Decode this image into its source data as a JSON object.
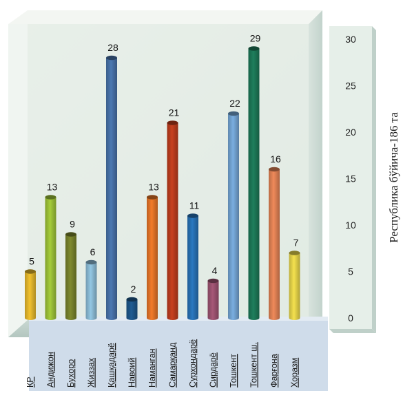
{
  "chart_data": {
    "type": "bar",
    "title": "",
    "xlabel": "",
    "ylabel": "Республика бўйича-186 та",
    "ylim": [
      0,
      30
    ],
    "yticks": [
      0,
      5,
      10,
      15,
      20,
      25,
      30
    ],
    "grid": false,
    "legend": "none",
    "categories": [
      "ҚР",
      "Андижон",
      "Бухоро",
      "Жиззах",
      "Қашқадарё",
      "Навоий",
      "Наманган",
      "Самарқанд",
      "Сурхондарё",
      "Сирдарё",
      "Тошкент",
      "Тошкент ш.",
      "Фарғона",
      "Хоразм"
    ],
    "values": [
      5,
      13,
      9,
      6,
      28,
      2,
      13,
      21,
      11,
      4,
      22,
      29,
      16,
      7
    ],
    "colors": [
      "#f2c22e",
      "#a6cd3a",
      "#7f8a2e",
      "#93c7e3",
      "#4c78b2",
      "#1f5c92",
      "#f27b2a",
      "#c8401f",
      "#2a78c0",
      "#a65877",
      "#7aaee0",
      "#1e7f5c",
      "#ef8a5a",
      "#f4e14e"
    ]
  }
}
